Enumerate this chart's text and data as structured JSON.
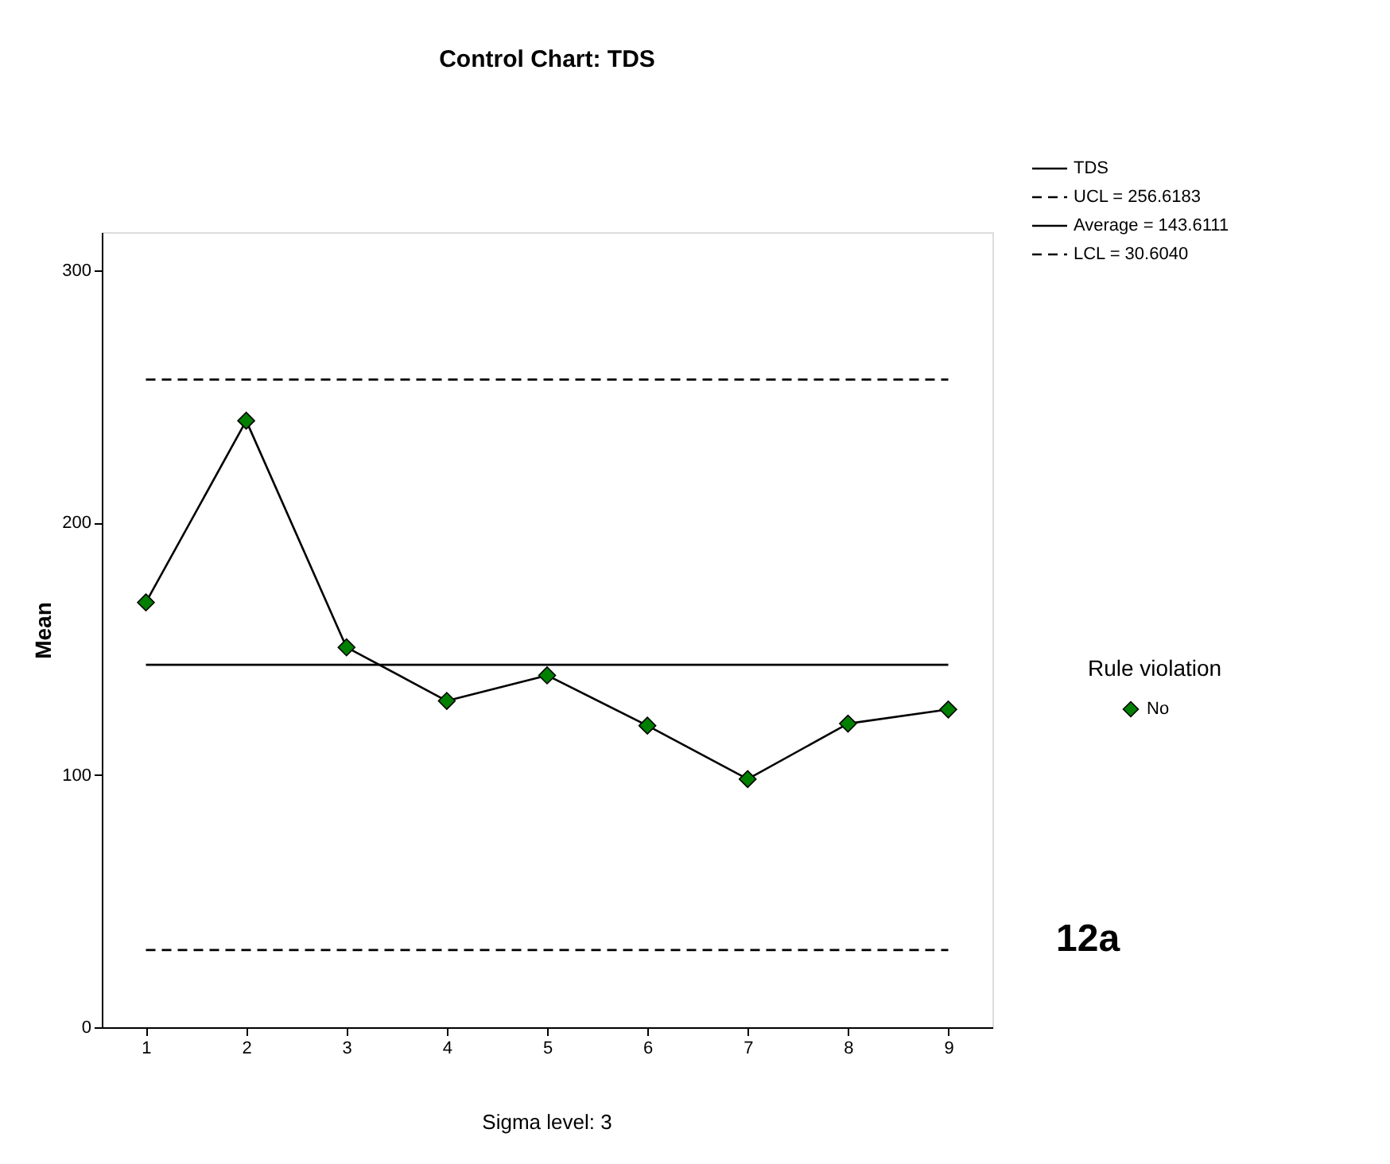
{
  "chart_data": {
    "type": "line",
    "title": "Control Chart: TDS",
    "ylabel": "Mean",
    "x": [
      1,
      2,
      3,
      4,
      5,
      6,
      7,
      8,
      9
    ],
    "xlim": [
      0.56,
      9.44
    ],
    "xticks": [
      1,
      2,
      3,
      4,
      5,
      6,
      7,
      8,
      9
    ],
    "ylim": [
      0,
      315
    ],
    "yticks": [
      0,
      100,
      200,
      300
    ],
    "series": [
      {
        "name": "TDS",
        "color": "#000000",
        "marker": "none",
        "values": [
          168.3,
          240.3,
          150.5,
          129.3,
          139.4,
          119.5,
          98.3,
          120.3,
          125.9
        ]
      },
      {
        "name": "No",
        "type": "scatter",
        "color": "#007f00",
        "marker": "diamond",
        "values": [
          168.3,
          240.3,
          150.5,
          129.3,
          139.4,
          119.5,
          98.3,
          120.3,
          125.9
        ]
      }
    ],
    "legend_title": "Rule violation",
    "ref_lines": [
      {
        "axis": "y",
        "value": 256.6183,
        "label": "UCL = 256.6183",
        "line_style": "dashed",
        "color": "#000000"
      },
      {
        "axis": "y",
        "value": 143.6111,
        "label": "Average = 143.6111",
        "line_style": "solid",
        "color": "#000000"
      },
      {
        "axis": "y",
        "value": 30.604,
        "label": "LCL = 30.6040",
        "line_style": "dashed",
        "color": "#000000"
      }
    ],
    "annotations": [
      "Sigma level:     3",
      "12a"
    ],
    "grid": false,
    "legend": "right"
  }
}
